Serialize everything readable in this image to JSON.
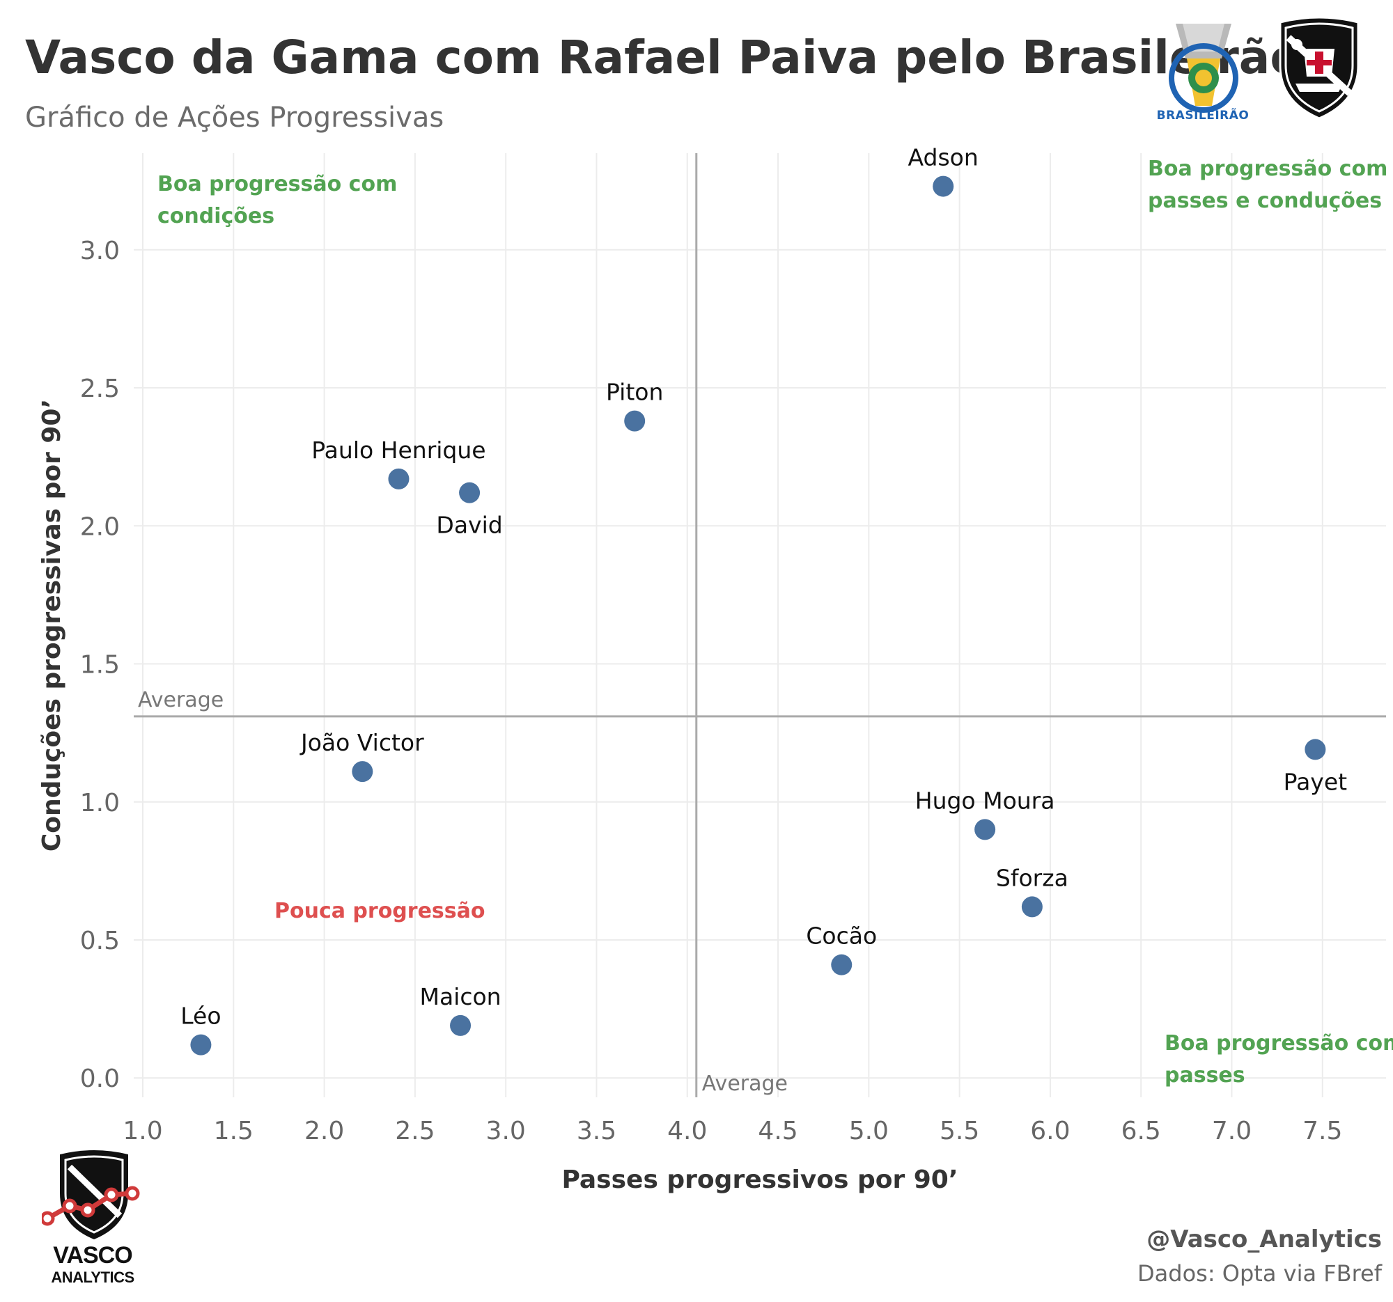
{
  "header": {
    "title": "Vasco da Gama com Rafael Paiva pelo Brasileirão",
    "subtitle": "Gráfico de Ações Progressivas"
  },
  "logos": {
    "league_label": "BRASILEIRÃO",
    "brand_line1": "VASCO",
    "brand_line2": "ANALYTICS"
  },
  "footer": {
    "handle": "@Vasco_Analytics",
    "source": "Dados: Opta via FBref"
  },
  "colors": {
    "point": "#4a72a0",
    "quadrant_good": "#52a352",
    "quadrant_bad": "#de4f4f",
    "average_line": "#aaaaaa",
    "grid": "#ececec"
  },
  "chart_data": {
    "type": "scatter",
    "xlabel": "Passes progressivos por 90’",
    "ylabel": "Conduções progressivas por 90’",
    "xlim": [
      0.95,
      7.85
    ],
    "ylim": [
      -0.07,
      3.35
    ],
    "xticks": [
      "1.0",
      "1.5",
      "2.0",
      "2.5",
      "3.0",
      "3.5",
      "4.0",
      "4.5",
      "5.0",
      "5.5",
      "6.0",
      "6.5",
      "7.0",
      "7.5"
    ],
    "yticks": [
      "0.0",
      "0.5",
      "1.0",
      "1.5",
      "2.0",
      "2.5",
      "3.0"
    ],
    "grid": true,
    "average": {
      "x": 4.05,
      "y": 1.31,
      "label": "Average"
    },
    "points": [
      {
        "name": "Adson",
        "x": 5.41,
        "y": 3.23,
        "label_position": "above"
      },
      {
        "name": "Piton",
        "x": 3.71,
        "y": 2.38,
        "label_position": "above"
      },
      {
        "name": "Paulo Henrique",
        "x": 2.41,
        "y": 2.17,
        "label_position": "above"
      },
      {
        "name": "David",
        "x": 2.8,
        "y": 2.12,
        "label_position": "below"
      },
      {
        "name": "João Victor",
        "x": 2.21,
        "y": 1.11,
        "label_position": "above"
      },
      {
        "name": "Payet",
        "x": 7.46,
        "y": 1.19,
        "label_position": "below"
      },
      {
        "name": "Hugo Moura",
        "x": 5.64,
        "y": 0.9,
        "label_position": "above"
      },
      {
        "name": "Sforza",
        "x": 5.9,
        "y": 0.62,
        "label_position": "above"
      },
      {
        "name": "Cocão",
        "x": 4.85,
        "y": 0.41,
        "label_position": "above"
      },
      {
        "name": "Maicon",
        "x": 2.75,
        "y": 0.19,
        "label_position": "above"
      },
      {
        "name": "Léo",
        "x": 1.32,
        "y": 0.12,
        "label_position": "above"
      }
    ],
    "quadrant_labels": [
      {
        "lines": [
          "Boa progressão com",
          "condições"
        ],
        "corner": "top-left",
        "tone": "good"
      },
      {
        "lines": [
          "Boa progressão com",
          "passes e conduções"
        ],
        "corner": "top-right",
        "tone": "good"
      },
      {
        "lines": [
          "Pouca progressão"
        ],
        "corner": "bottom-left",
        "tone": "bad"
      },
      {
        "lines": [
          "Boa progressão com",
          "passes"
        ],
        "corner": "bottom-right",
        "tone": "good"
      }
    ]
  }
}
